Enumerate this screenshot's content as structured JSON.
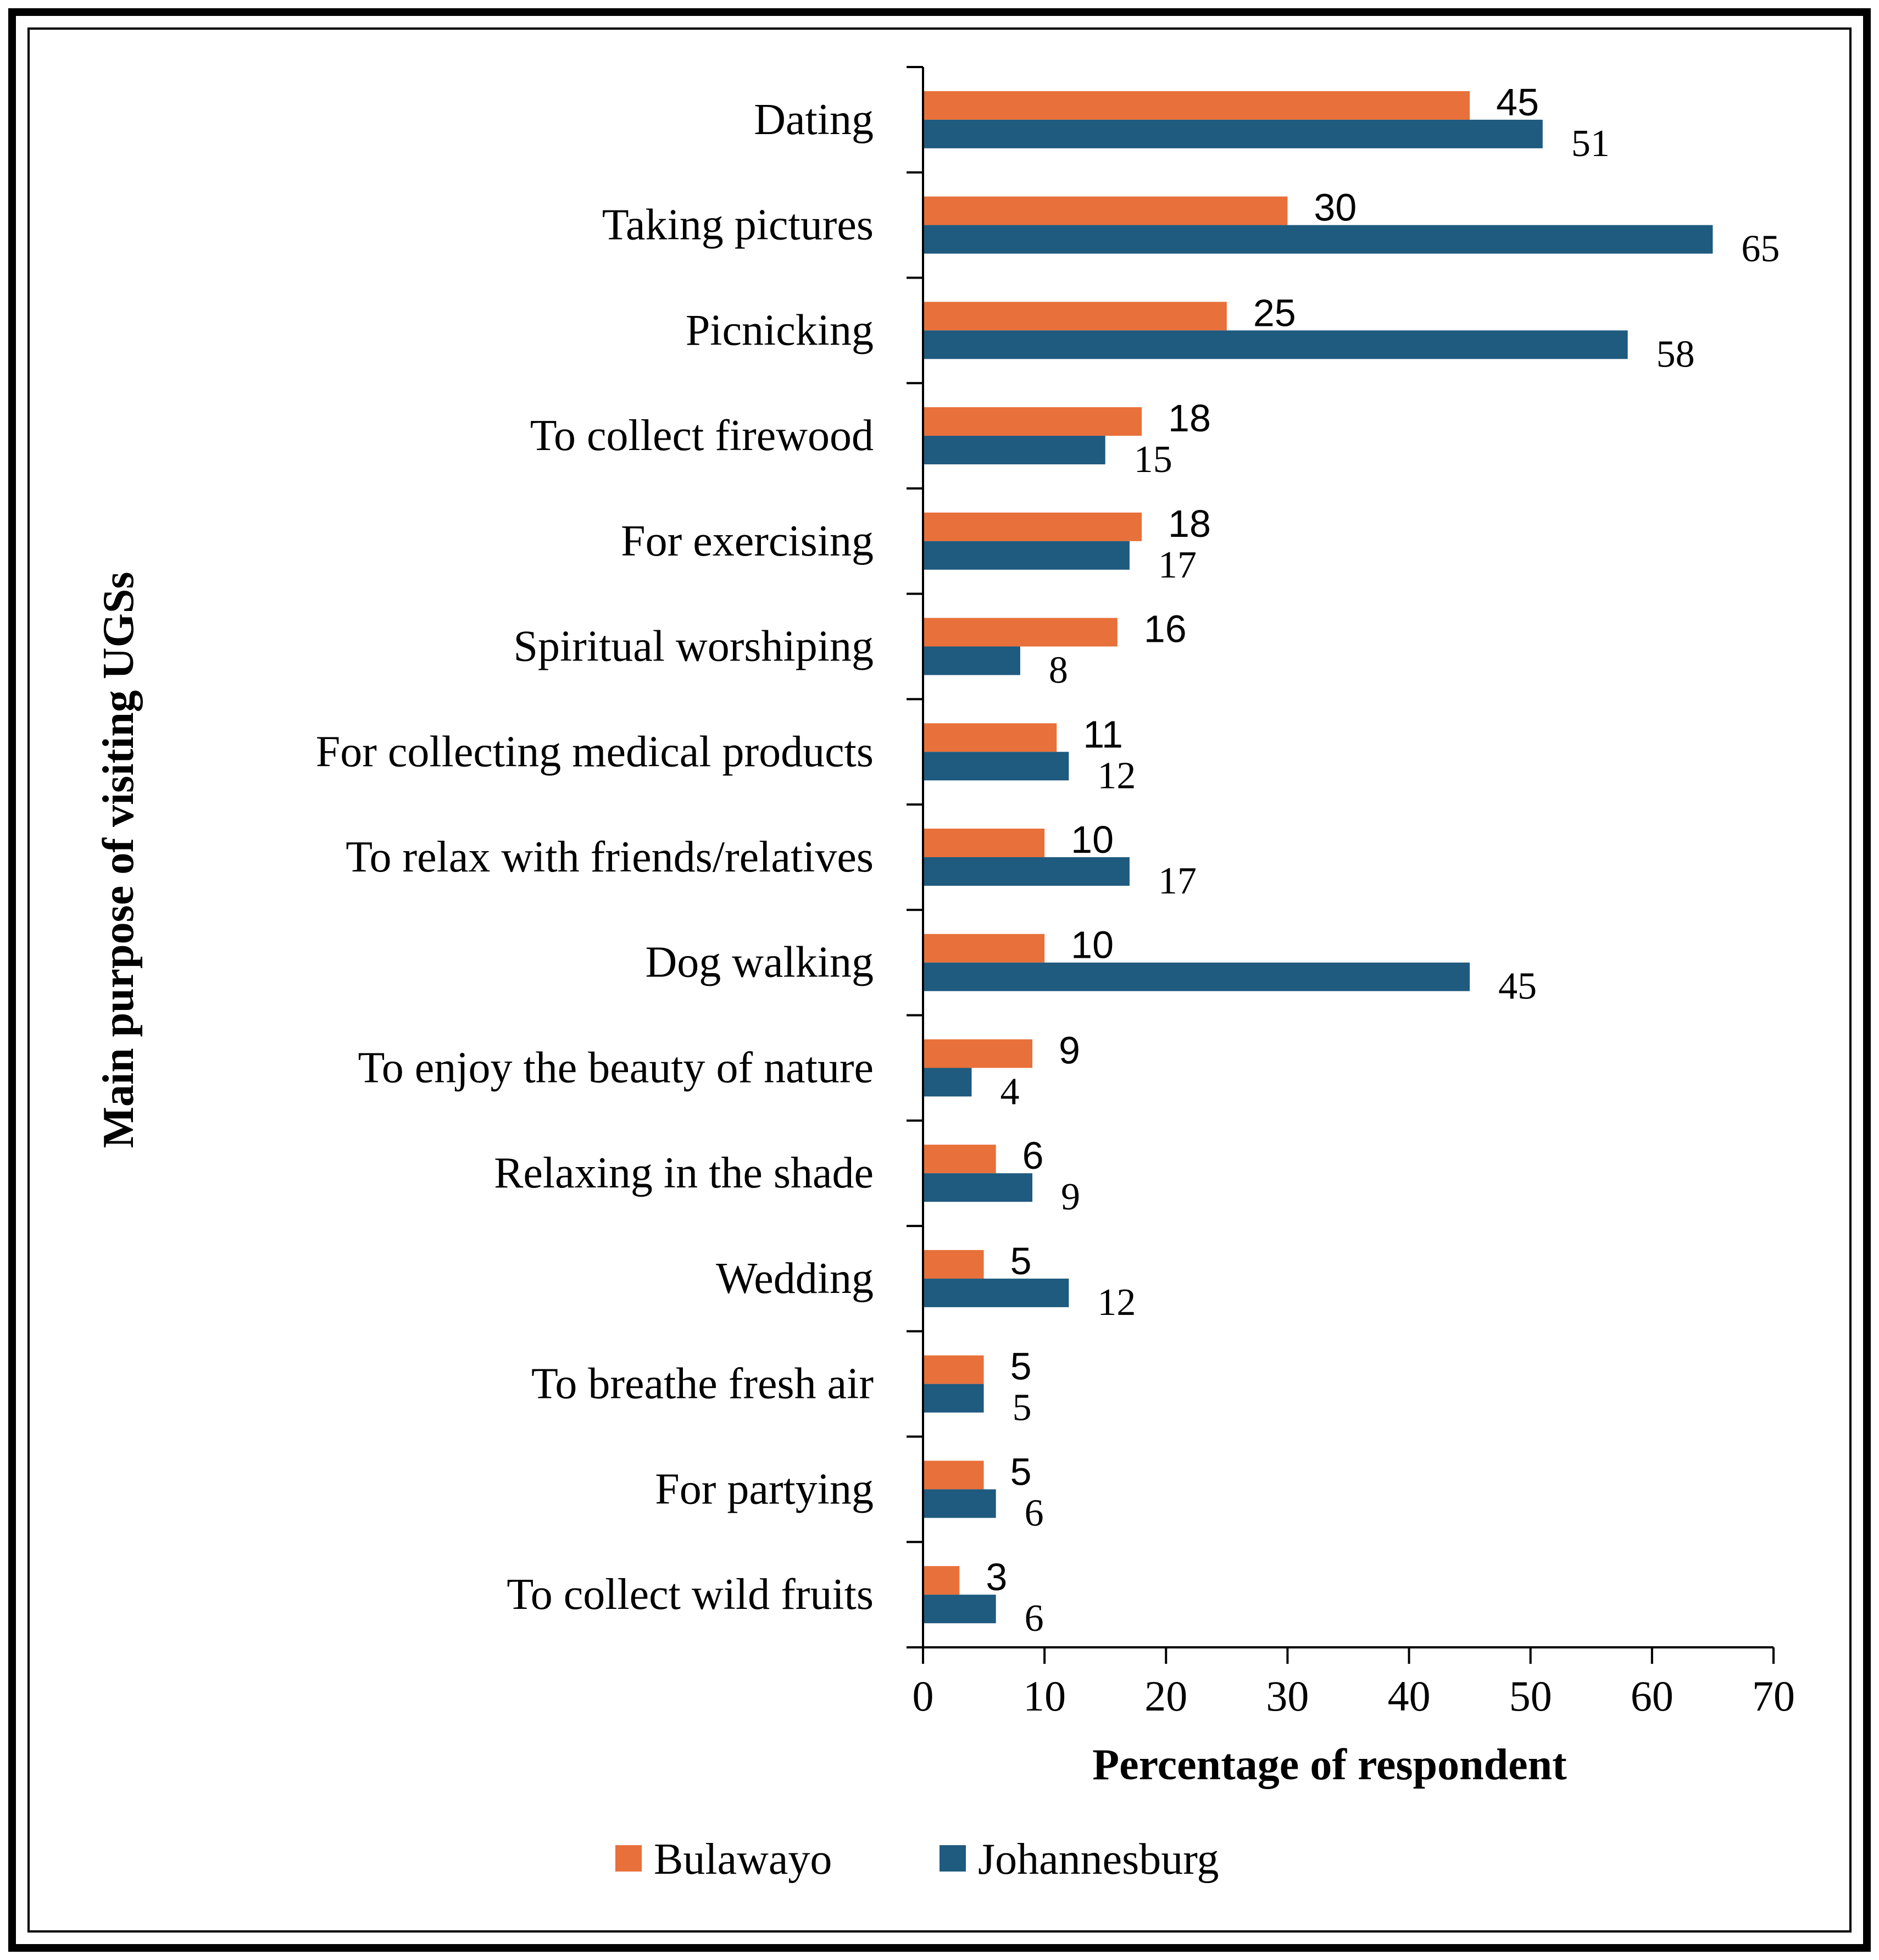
{
  "chart_data": {
    "type": "bar",
    "orientation": "horizontal",
    "categories": [
      "Dating",
      "Taking pictures",
      "Picnicking",
      "To collect firewood",
      "For exercising",
      "Spiritual worshiping",
      "For collecting medical products",
      "To relax with friends/relatives",
      "Dog walking",
      "To enjoy the beauty of nature",
      "Relaxing in the shade",
      "Wedding",
      "To breathe fresh air",
      "For partying",
      "To collect wild fruits"
    ],
    "series": [
      {
        "name": "Bulawayo",
        "color": "#E8703A",
        "values": [
          45,
          30,
          25,
          18,
          18,
          16,
          11,
          10,
          10,
          9,
          6,
          5,
          5,
          5,
          3
        ]
      },
      {
        "name": "Johannesburg",
        "color": "#1F5A7F",
        "values": [
          51,
          65,
          58,
          15,
          17,
          8,
          12,
          17,
          45,
          4,
          9,
          12,
          5,
          6,
          6
        ]
      }
    ],
    "xlabel": "Percentage of respondent",
    "ylabel": "Main purpose of visiting UGSs",
    "xlim": [
      0,
      70
    ],
    "xticks": [
      0,
      10,
      20,
      30,
      40,
      50,
      60,
      70
    ],
    "grid": false,
    "legend": "bottom"
  }
}
